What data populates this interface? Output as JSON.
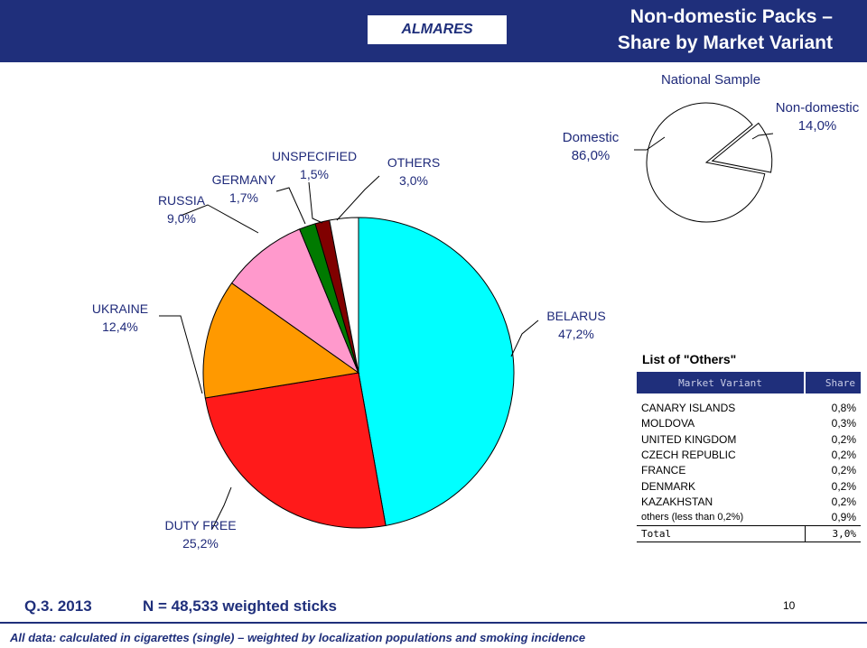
{
  "header": {
    "brand": "ALMARES",
    "title_line1": "Non-domestic Packs –",
    "title_line2": "Share by Market Variant"
  },
  "chart_data": [
    {
      "type": "pie",
      "title": "",
      "slices": [
        {
          "label": "BELARUS",
          "display": "47,2%",
          "value": 47.2,
          "color": "#00ffff"
        },
        {
          "label": "DUTY FREE",
          "display": "25,2%",
          "value": 25.2,
          "color": "#ff1a1a"
        },
        {
          "label": "UKRAINE",
          "display": "12,4%",
          "value": 12.4,
          "color": "#ff9900"
        },
        {
          "label": "RUSSIA",
          "display": "9,0%",
          "value": 9.0,
          "color": "#ff99cc"
        },
        {
          "label": "GERMANY",
          "display": "1,7%",
          "value": 1.7,
          "color": "#007a00"
        },
        {
          "label": "UNSPECIFIED",
          "display": "1,5%",
          "value": 1.5,
          "color": "#800000"
        },
        {
          "label": "OTHERS",
          "display": "3,0%",
          "value": 3.0,
          "color": "#ffffff"
        }
      ]
    },
    {
      "type": "pie",
      "title": "National Sample",
      "slices": [
        {
          "label": "Domestic",
          "display": "86,0%",
          "value": 86.0,
          "color": "#ffffff"
        },
        {
          "label": "Non-domestic",
          "display": "14,0%",
          "value": 14.0,
          "color": "#ffffff"
        }
      ]
    }
  ],
  "others_table": {
    "title": "List of \"Others\"",
    "col_variant": "Market Variant",
    "col_share": "Share",
    "rows": [
      {
        "name": "CANARY ISLANDS",
        "share": "0,8%"
      },
      {
        "name": "MOLDOVA",
        "share": "0,3%"
      },
      {
        "name": "UNITED KINGDOM",
        "share": "0,2%"
      },
      {
        "name": "CZECH REPUBLIC",
        "share": "0,2%"
      },
      {
        "name": "FRANCE",
        "share": "0,2%"
      },
      {
        "name": "DENMARK",
        "share": "0,2%"
      },
      {
        "name": "KAZAKHSTAN",
        "share": "0,2%"
      },
      {
        "name": "others (less than 0,2%)",
        "share": "0,9%"
      }
    ],
    "total_label": "Total",
    "total_share": "3,0%"
  },
  "footer": {
    "question": "Q.3. 2013",
    "sample": "N = 48,533 weighted sticks",
    "page_number": "10",
    "note": "All data: calculated in cigarettes (single) – weighted by localization populations and  smoking incidence"
  }
}
